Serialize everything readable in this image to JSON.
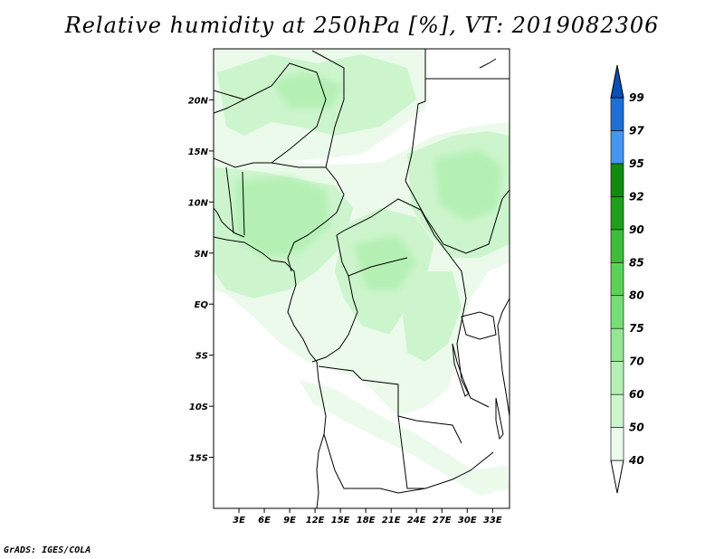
{
  "title": "Relative humidity at 250hPa [%], VT: 2019082306",
  "credit": "GrADS: IGES/COLA",
  "map": {
    "lon_range": [
      0,
      35
    ],
    "lat_range": [
      -20,
      25
    ],
    "lat_ticks": [
      {
        "value": 20,
        "label": "20N"
      },
      {
        "value": 15,
        "label": "15N"
      },
      {
        "value": 10,
        "label": "10N"
      },
      {
        "value": 5,
        "label": "5N"
      },
      {
        "value": 0,
        "label": "EQ"
      },
      {
        "value": -5,
        "label": "5S"
      },
      {
        "value": -10,
        "label": "10S"
      },
      {
        "value": -15,
        "label": "15S"
      }
    ],
    "lon_ticks": [
      {
        "value": 3,
        "label": "3E"
      },
      {
        "value": 6,
        "label": "6E"
      },
      {
        "value": 9,
        "label": "9E"
      },
      {
        "value": 12,
        "label": "12E"
      },
      {
        "value": 15,
        "label": "15E"
      },
      {
        "value": 18,
        "label": "18E"
      },
      {
        "value": 21,
        "label": "21E"
      },
      {
        "value": 24,
        "label": "24E"
      },
      {
        "value": 27,
        "label": "27E"
      },
      {
        "value": 30,
        "label": "30E"
      },
      {
        "value": 33,
        "label": "33E"
      }
    ]
  },
  "colorbar": {
    "levels": [
      "40",
      "50",
      "60",
      "70",
      "75",
      "80",
      "85",
      "90",
      "92",
      "95",
      "97",
      "99"
    ],
    "colors": [
      "#ebfaeb",
      "#cdf5cd",
      "#b4f0b4",
      "#96e696",
      "#78dc78",
      "#5ad25a",
      "#3cbe3c",
      "#1ea01e",
      "#0f8c0f",
      "#4696f0",
      "#1e6ed7",
      "#0a50b4"
    ],
    "below_color": "#ffffff"
  }
}
